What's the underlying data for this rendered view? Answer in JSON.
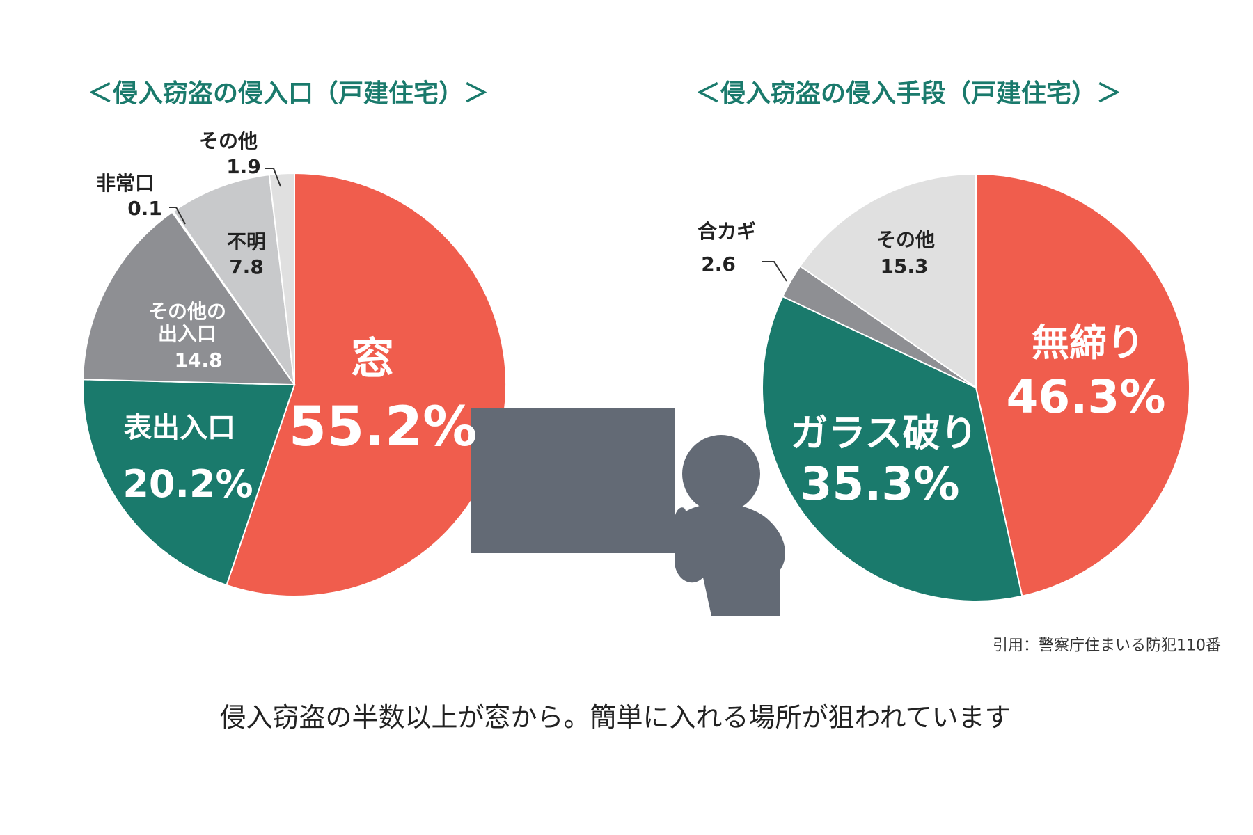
{
  "chart_data": [
    {
      "type": "pie",
      "title": "＜侵入窃盗の侵入口（戸建住宅）＞",
      "categories": [
        "窓",
        "表出入口",
        "その他の出入口",
        "非常口",
        "不明",
        "その他"
      ],
      "values": [
        55.2,
        20.2,
        14.8,
        0.1,
        7.8,
        1.9
      ],
      "value_labels": [
        "55.2%",
        "20.2%",
        "14.8",
        "0.1",
        "7.8",
        "1.9"
      ],
      "colors": [
        "#f05d4d",
        "#1a7a6c",
        "#8e8f93",
        "#b0b1b4",
        "#c8c9cb",
        "#e0e0e0"
      ]
    },
    {
      "type": "pie",
      "title": "＜侵入窃盗の侵入手段（戸建住宅）＞",
      "categories": [
        "無締り",
        "ガラス破り",
        "合カギ",
        "その他"
      ],
      "values": [
        46.3,
        35.3,
        2.6,
        15.3
      ],
      "value_labels": [
        "46.3%",
        "35.3%",
        "2.6",
        "15.3"
      ],
      "colors": [
        "#f05d4d",
        "#1a7a6c",
        "#8e8f93",
        "#e0e0e0"
      ]
    }
  ],
  "source": "引用：警察庁住まいる防犯110番",
  "caption": "侵入窃盗の半数以上が窓から。簡単に入れる場所が狙われています"
}
